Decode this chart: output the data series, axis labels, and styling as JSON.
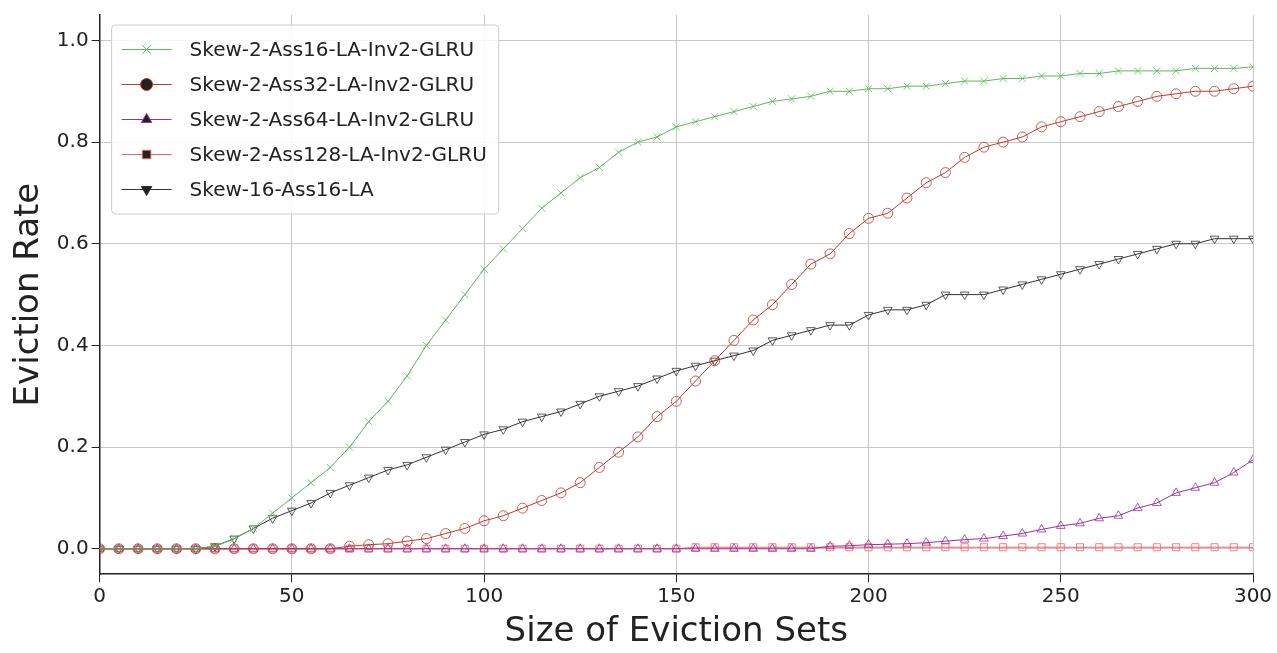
{
  "chart_data": {
    "type": "line",
    "xlabel": "Size of Eviction Sets",
    "ylabel": "Eviction Rate",
    "x": [
      0,
      5,
      10,
      15,
      20,
      25,
      30,
      35,
      40,
      45,
      50,
      55,
      60,
      65,
      70,
      75,
      80,
      85,
      90,
      95,
      100,
      105,
      110,
      115,
      120,
      125,
      130,
      135,
      140,
      145,
      150,
      155,
      160,
      165,
      170,
      175,
      180,
      185,
      190,
      195,
      200,
      205,
      210,
      215,
      220,
      225,
      230,
      235,
      240,
      245,
      250,
      255,
      260,
      265,
      270,
      275,
      280,
      285,
      290,
      295,
      300
    ],
    "xlim": [
      0,
      300
    ],
    "xticks": [
      0,
      50,
      100,
      150,
      200,
      250,
      300
    ],
    "ylim": [
      -0.05,
      1.05
    ],
    "yticks": [
      {
        "value": 0,
        "label": "0.0"
      },
      {
        "value": 0.2,
        "label": "0.2"
      },
      {
        "value": 0.4,
        "label": "0.4"
      },
      {
        "value": 0.6,
        "label": "0.6"
      },
      {
        "value": 0.8,
        "label": "0.8"
      },
      {
        "value": 1,
        "label": "1.0"
      }
    ],
    "grid": true,
    "legend": "top left",
    "line_style": "solid",
    "series": [
      {
        "name": "Skew-2-Ass16-LA-Inv2-GLRU",
        "color": "#5cb85c",
        "marker": "cross",
        "values": [
          0,
          0,
          0,
          0,
          0,
          0,
          0.005,
          0.02,
          0.04,
          0.07,
          0.1,
          0.13,
          0.16,
          0.2,
          0.25,
          0.29,
          0.34,
          0.4,
          0.45,
          0.5,
          0.55,
          0.59,
          0.63,
          0.67,
          0.7,
          0.73,
          0.75,
          0.78,
          0.8,
          0.81,
          0.83,
          0.84,
          0.85,
          0.86,
          0.87,
          0.88,
          0.885,
          0.89,
          0.9,
          0.9,
          0.905,
          0.905,
          0.91,
          0.91,
          0.915,
          0.92,
          0.92,
          0.925,
          0.925,
          0.93,
          0.93,
          0.935,
          0.935,
          0.94,
          0.94,
          0.94,
          0.94,
          0.945,
          0.945,
          0.945,
          0.948
        ]
      },
      {
        "name": "Skew-2-Ass32-LA-Inv2-GLRU",
        "color": "#c0392b",
        "marker": "circle",
        "values": [
          0,
          0,
          0,
          0,
          0,
          0,
          0,
          0,
          0,
          0,
          0,
          0,
          0,
          0.005,
          0.008,
          0.01,
          0.015,
          0.02,
          0.03,
          0.04,
          0.055,
          0.065,
          0.08,
          0.095,
          0.11,
          0.13,
          0.16,
          0.19,
          0.22,
          0.26,
          0.29,
          0.33,
          0.37,
          0.41,
          0.45,
          0.48,
          0.52,
          0.56,
          0.58,
          0.62,
          0.65,
          0.66,
          0.69,
          0.72,
          0.74,
          0.77,
          0.79,
          0.8,
          0.81,
          0.83,
          0.84,
          0.85,
          0.86,
          0.87,
          0.88,
          0.89,
          0.895,
          0.9,
          0.9,
          0.905,
          0.91
        ]
      },
      {
        "name": "Skew-2-Ass64-LA-Inv2-GLRU",
        "color": "#9b30a0",
        "marker": "triangle",
        "values": [
          0,
          0,
          0,
          0,
          0,
          0,
          0,
          0,
          0,
          0,
          0,
          0,
          0,
          0,
          0,
          0,
          0,
          0,
          0,
          0,
          0,
          0,
          0,
          0,
          0,
          0,
          0,
          0,
          0,
          0,
          0,
          0,
          0,
          0,
          0,
          0,
          0,
          0,
          0.005,
          0.006,
          0.008,
          0.009,
          0.01,
          0.012,
          0.015,
          0.018,
          0.02,
          0.025,
          0.03,
          0.038,
          0.045,
          0.05,
          0.06,
          0.065,
          0.08,
          0.09,
          0.11,
          0.12,
          0.13,
          0.15,
          0.175
        ]
      },
      {
        "name": "Skew-2-Ass128-LA-Inv2-GLRU",
        "color": "#f06060",
        "marker": "square",
        "values": [
          0,
          0,
          0,
          0,
          0,
          0,
          0,
          0,
          0,
          0,
          0,
          0,
          0,
          0,
          0,
          0,
          0,
          0,
          0,
          0,
          0,
          0,
          0,
          0,
          0,
          0,
          0,
          0,
          0,
          0,
          0,
          0.003,
          0.003,
          0.003,
          0.003,
          0.003,
          0.003,
          0.003,
          0.003,
          0.003,
          0.003,
          0.003,
          0.003,
          0.003,
          0.003,
          0.003,
          0.003,
          0.003,
          0.003,
          0.003,
          0.003,
          0.003,
          0.003,
          0.003,
          0.003,
          0.003,
          0.003,
          0.003,
          0.003,
          0.003,
          0.003
        ]
      },
      {
        "name": "Skew-16-Ass16-LA",
        "color": "#333333",
        "marker": "triangle-down",
        "values": [
          0,
          0,
          0,
          0,
          0,
          0,
          0.005,
          0.02,
          0.04,
          0.06,
          0.075,
          0.09,
          0.11,
          0.125,
          0.14,
          0.155,
          0.165,
          0.18,
          0.195,
          0.21,
          0.225,
          0.235,
          0.25,
          0.26,
          0.27,
          0.285,
          0.3,
          0.31,
          0.32,
          0.335,
          0.35,
          0.36,
          0.37,
          0.38,
          0.39,
          0.41,
          0.42,
          0.43,
          0.44,
          0.44,
          0.46,
          0.47,
          0.47,
          0.48,
          0.5,
          0.5,
          0.5,
          0.51,
          0.52,
          0.53,
          0.54,
          0.55,
          0.56,
          0.57,
          0.58,
          0.59,
          0.6,
          0.6,
          0.61,
          0.61,
          0.61
        ]
      }
    ]
  }
}
